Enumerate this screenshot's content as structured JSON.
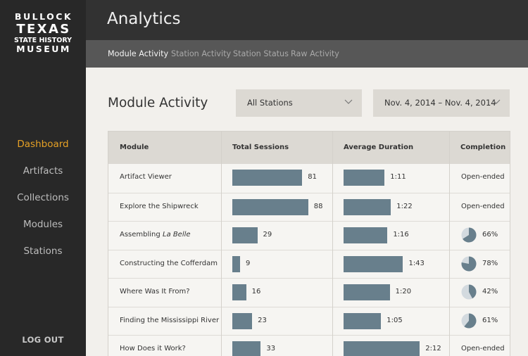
{
  "logo": {
    "line1": "BULLOCK",
    "line2": "TEXAS",
    "line3": "STATE HISTORY",
    "line4": "MUSEUM"
  },
  "sidebar": {
    "items": [
      {
        "label": "Dashboard",
        "active": true
      },
      {
        "label": "Artifacts",
        "active": false
      },
      {
        "label": "Collections",
        "active": false
      },
      {
        "label": "Modules",
        "active": false
      },
      {
        "label": "Stations",
        "active": false
      }
    ],
    "logout": "LOG OUT"
  },
  "header": {
    "title": "Analytics"
  },
  "subnav": {
    "tabs": [
      {
        "label": "Module Activity",
        "active": true
      },
      {
        "label": "Station Activity",
        "active": false
      },
      {
        "label": "Station Status",
        "active": false
      },
      {
        "label": "Raw Activity",
        "active": false
      }
    ]
  },
  "main": {
    "title": "Module Activity",
    "station_filter": "All Stations",
    "date_filter": "Nov. 4, 2014 – Nov. 4, 2014"
  },
  "table": {
    "columns": [
      "Module",
      "Total Sessions",
      "Average Duration",
      "Completion"
    ],
    "rows": [
      {
        "module": "Artifact Viewer",
        "sessions": 81,
        "duration": "1:11",
        "duration_sec": 71,
        "completion": "Open-ended",
        "completion_fraction": null
      },
      {
        "module": "Explore the Shipwreck",
        "sessions": 88,
        "duration": "1:22",
        "duration_sec": 82,
        "completion": "Open-ended",
        "completion_fraction": null
      },
      {
        "module": "Assembling",
        "module_italic": "La Belle",
        "sessions": 29,
        "duration": "1:16",
        "duration_sec": 76,
        "completion": "66%",
        "completion_fraction": 0.66
      },
      {
        "module": "Constructing the Cofferdam",
        "sessions": 9,
        "duration": "1:43",
        "duration_sec": 103,
        "completion": "78%",
        "completion_fraction": 0.78
      },
      {
        "module": "Where Was It From?",
        "sessions": 16,
        "duration": "1:20",
        "duration_sec": 80,
        "completion": "42%",
        "completion_fraction": 0.42
      },
      {
        "module": "Finding the Mississippi River",
        "sessions": 23,
        "duration": "1:05",
        "duration_sec": 65,
        "completion": "61%",
        "completion_fraction": 0.61
      },
      {
        "module": "How Does it Work?",
        "sessions": 33,
        "duration": "2:12",
        "duration_sec": 132,
        "completion": "Open-ended",
        "completion_fraction": null
      }
    ]
  },
  "colors": {
    "bar": "#687f8c",
    "pie_fill": "#687f8c",
    "pie_empty": "#d3dadf",
    "active_nav": "#e6a125"
  }
}
